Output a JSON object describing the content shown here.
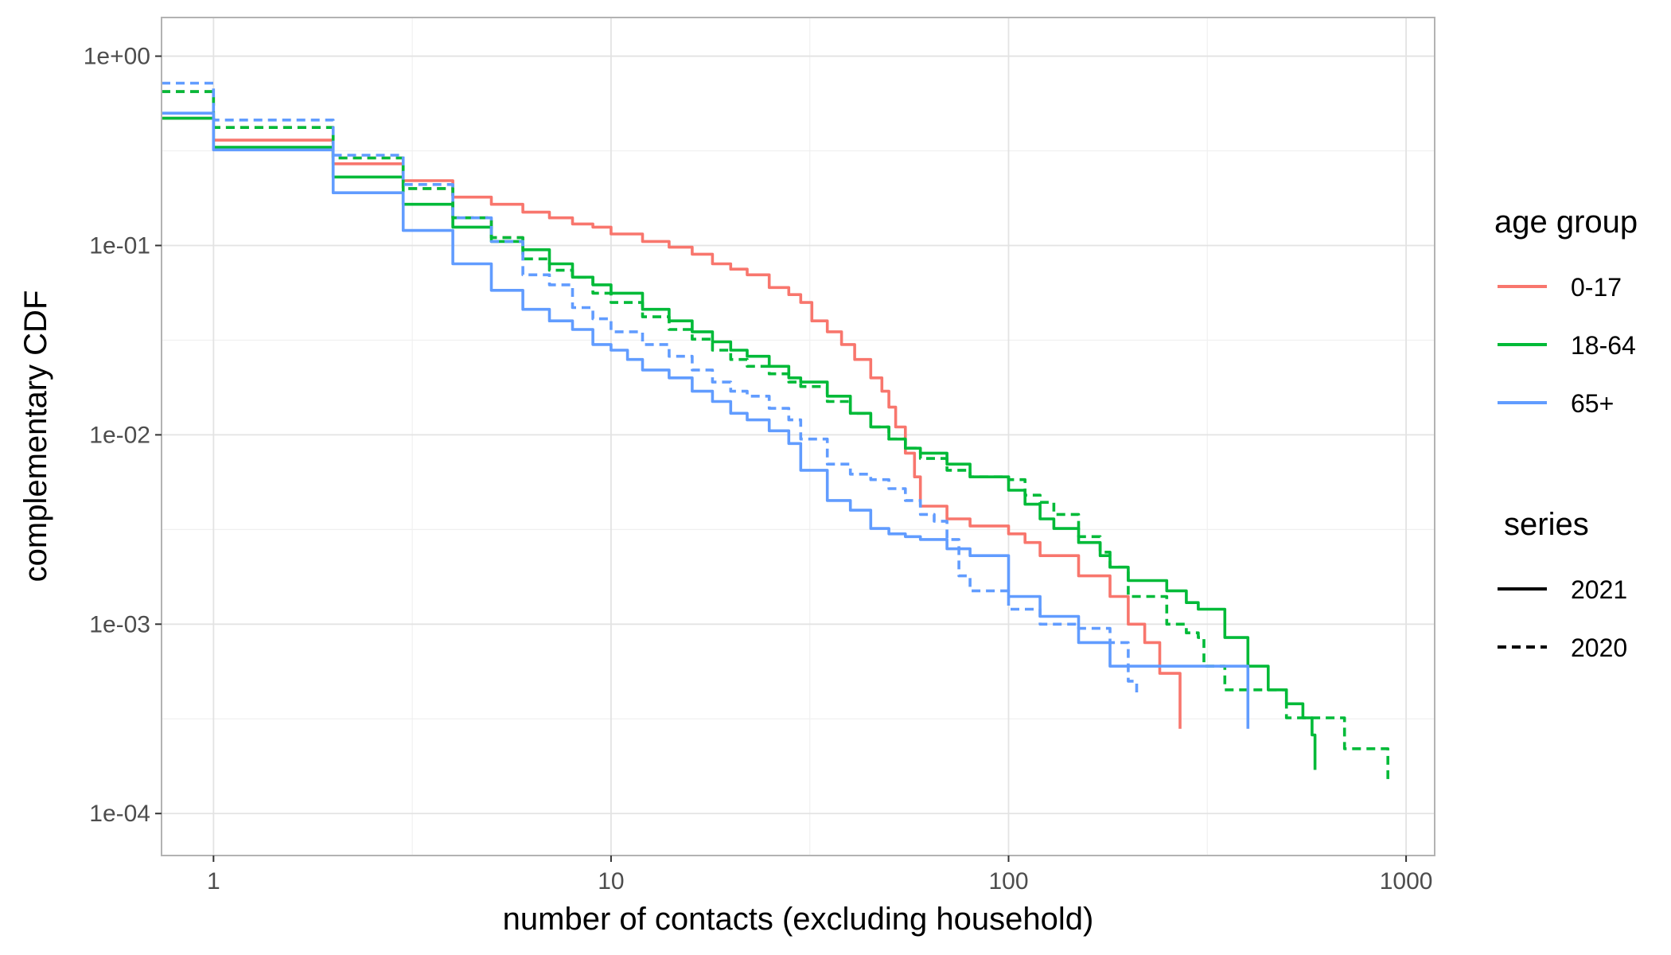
{
  "chart_data": {
    "type": "line",
    "xlabel": "number of contacts (excluding household)",
    "ylabel": "complementary CDF",
    "x_scale": "log10",
    "y_scale": "log10",
    "xlim": [
      0.74,
      1180
    ],
    "ylim": [
      6e-05,
      1.6
    ],
    "x_ticks": [
      {
        "value": 1,
        "label": "1"
      },
      {
        "value": 10,
        "label": "10"
      },
      {
        "value": 100,
        "label": "100"
      },
      {
        "value": 1000,
        "label": "1000"
      }
    ],
    "y_ticks": [
      {
        "value": 1,
        "label": "1e+00"
      },
      {
        "value": 0.1,
        "label": "1e-01"
      },
      {
        "value": 0.01,
        "label": "1e-02"
      },
      {
        "value": 0.001,
        "label": "1e-03"
      },
      {
        "value": 0.0001,
        "label": "1e-04"
      }
    ],
    "grid": true,
    "legend_position": "right",
    "legend_color": {
      "title": "age group",
      "items": [
        {
          "label": "0-17",
          "color": "#F8766D"
        },
        {
          "label": "18-64",
          "color": "#00BA38"
        },
        {
          "label": "65+",
          "color": "#619CFF"
        }
      ]
    },
    "legend_linetype": {
      "title": "series",
      "items": [
        {
          "label": "2021",
          "dash": "solid"
        },
        {
          "label": "2020",
          "dash": "dashed"
        }
      ]
    },
    "series": [
      {
        "name": "0-17",
        "color": "#F8766D",
        "dash": "solid",
        "step": true,
        "points": [
          [
            0.74,
            0.47
          ],
          [
            1,
            0.36
          ],
          [
            2,
            0.27
          ],
          [
            3,
            0.22
          ],
          [
            4,
            0.18
          ],
          [
            5,
            0.165
          ],
          [
            6,
            0.15
          ],
          [
            7,
            0.14
          ],
          [
            8,
            0.13
          ],
          [
            9,
            0.125
          ],
          [
            10,
            0.115
          ],
          [
            12,
            0.105
          ],
          [
            14,
            0.098
          ],
          [
            16,
            0.09
          ],
          [
            18,
            0.08
          ],
          [
            20,
            0.075
          ],
          [
            22,
            0.07
          ],
          [
            25,
            0.06
          ],
          [
            28,
            0.055
          ],
          [
            30,
            0.05
          ],
          [
            32,
            0.04
          ],
          [
            35,
            0.035
          ],
          [
            38,
            0.03
          ],
          [
            41,
            0.025
          ],
          [
            45,
            0.02
          ],
          [
            48,
            0.017
          ],
          [
            50,
            0.014
          ],
          [
            52,
            0.011
          ],
          [
            55,
            0.008
          ],
          [
            58,
            0.006
          ],
          [
            60,
            0.0042
          ],
          [
            70,
            0.0036
          ],
          [
            80,
            0.0033
          ],
          [
            100,
            0.003
          ],
          [
            110,
            0.0027
          ],
          [
            120,
            0.0023
          ],
          [
            150,
            0.0018
          ],
          [
            180,
            0.0014
          ],
          [
            200,
            0.001
          ],
          [
            220,
            0.0008
          ],
          [
            240,
            0.00055
          ],
          [
            270,
            0.00028
          ]
        ]
      },
      {
        "name": "0-17",
        "color": "#F8766D",
        "dash": "dashed",
        "step": true,
        "points": [
          [
            0.74,
            0.65
          ],
          [
            1,
            0.42
          ],
          [
            2,
            0.29
          ],
          [
            3,
            0.2
          ],
          [
            4,
            0.14
          ],
          [
            5,
            0.11
          ],
          [
            6,
            0.1
          ]
        ]
      },
      {
        "name": "18-64",
        "color": "#00BA38",
        "dash": "solid",
        "step": true,
        "points": [
          [
            0.74,
            0.47
          ],
          [
            1,
            0.33
          ],
          [
            2,
            0.23
          ],
          [
            3,
            0.165
          ],
          [
            4,
            0.125
          ],
          [
            5,
            0.105
          ],
          [
            6,
            0.095
          ],
          [
            7,
            0.08
          ],
          [
            8,
            0.068
          ],
          [
            9,
            0.062
          ],
          [
            10,
            0.056
          ],
          [
            12,
            0.046
          ],
          [
            14,
            0.04
          ],
          [
            16,
            0.035
          ],
          [
            18,
            0.031
          ],
          [
            20,
            0.028
          ],
          [
            22,
            0.026
          ],
          [
            25,
            0.023
          ],
          [
            28,
            0.02
          ],
          [
            30,
            0.019
          ],
          [
            35,
            0.016
          ],
          [
            40,
            0.013
          ],
          [
            45,
            0.011
          ],
          [
            50,
            0.0095
          ],
          [
            55,
            0.0085
          ],
          [
            60,
            0.008
          ],
          [
            70,
            0.007
          ],
          [
            80,
            0.006
          ],
          [
            100,
            0.0051
          ],
          [
            110,
            0.0043
          ],
          [
            120,
            0.0036
          ],
          [
            130,
            0.0032
          ],
          [
            150,
            0.0027
          ],
          [
            170,
            0.0023
          ],
          [
            180,
            0.002
          ],
          [
            200,
            0.0017
          ],
          [
            250,
            0.0015
          ],
          [
            280,
            0.0013
          ],
          [
            300,
            0.0012
          ],
          [
            350,
            0.00085
          ],
          [
            400,
            0.0006
          ],
          [
            450,
            0.00045
          ],
          [
            500,
            0.00038
          ],
          [
            550,
            0.00032
          ],
          [
            580,
            0.00026
          ],
          [
            590,
            0.00017
          ]
        ]
      },
      {
        "name": "18-64",
        "color": "#00BA38",
        "dash": "dashed",
        "step": true,
        "points": [
          [
            0.74,
            0.65
          ],
          [
            1,
            0.42
          ],
          [
            2,
            0.29
          ],
          [
            3,
            0.2
          ],
          [
            4,
            0.14
          ],
          [
            5,
            0.11
          ],
          [
            6,
            0.085
          ],
          [
            7,
            0.074
          ],
          [
            8,
            0.068
          ],
          [
            9,
            0.056
          ],
          [
            10,
            0.05
          ],
          [
            12,
            0.042
          ],
          [
            14,
            0.036
          ],
          [
            16,
            0.032
          ],
          [
            18,
            0.028
          ],
          [
            20,
            0.025
          ],
          [
            22,
            0.023
          ],
          [
            25,
            0.021
          ],
          [
            28,
            0.019
          ],
          [
            30,
            0.018
          ],
          [
            35,
            0.015
          ],
          [
            40,
            0.013
          ],
          [
            45,
            0.011
          ],
          [
            50,
            0.0095
          ],
          [
            55,
            0.0085
          ],
          [
            60,
            0.0075
          ],
          [
            70,
            0.0065
          ],
          [
            80,
            0.006
          ],
          [
            100,
            0.0058
          ],
          [
            110,
            0.0048
          ],
          [
            120,
            0.0044
          ],
          [
            130,
            0.0038
          ],
          [
            150,
            0.0029
          ],
          [
            170,
            0.0024
          ],
          [
            180,
            0.002
          ],
          [
            200,
            0.0014
          ],
          [
            250,
            0.001
          ],
          [
            280,
            0.0009
          ],
          [
            300,
            0.00085
          ],
          [
            310,
            0.0006
          ],
          [
            350,
            0.00045
          ],
          [
            500,
            0.00032
          ],
          [
            700,
            0.00022
          ],
          [
            900,
            0.00015
          ]
        ]
      },
      {
        "name": "65+",
        "color": "#619CFF",
        "dash": "solid",
        "step": true,
        "points": [
          [
            0.74,
            0.5
          ],
          [
            1,
            0.32
          ],
          [
            2,
            0.19
          ],
          [
            3,
            0.12
          ],
          [
            4,
            0.08
          ],
          [
            5,
            0.058
          ],
          [
            6,
            0.046
          ],
          [
            7,
            0.04
          ],
          [
            8,
            0.036
          ],
          [
            9,
            0.03
          ],
          [
            10,
            0.028
          ],
          [
            11,
            0.025
          ],
          [
            12,
            0.022
          ],
          [
            14,
            0.02
          ],
          [
            16,
            0.017
          ],
          [
            18,
            0.015
          ],
          [
            20,
            0.013
          ],
          [
            22,
            0.012
          ],
          [
            25,
            0.0105
          ],
          [
            28,
            0.009
          ],
          [
            30,
            0.0065
          ],
          [
            35,
            0.0045
          ],
          [
            40,
            0.004
          ],
          [
            45,
            0.0032
          ],
          [
            50,
            0.003
          ],
          [
            55,
            0.0029
          ],
          [
            60,
            0.0028
          ],
          [
            70,
            0.0025
          ],
          [
            80,
            0.0023
          ],
          [
            100,
            0.0014
          ],
          [
            120,
            0.0011
          ],
          [
            150,
            0.0008
          ],
          [
            180,
            0.0006
          ],
          [
            400,
            0.00028
          ]
        ]
      },
      {
        "name": "65+",
        "color": "#619CFF",
        "dash": "dashed",
        "step": true,
        "points": [
          [
            0.74,
            0.72
          ],
          [
            1,
            0.46
          ],
          [
            2,
            0.3
          ],
          [
            3,
            0.21
          ],
          [
            4,
            0.14
          ],
          [
            5,
            0.105
          ],
          [
            6,
            0.07
          ],
          [
            7,
            0.062
          ],
          [
            8,
            0.047
          ],
          [
            9,
            0.041
          ],
          [
            10,
            0.035
          ],
          [
            12,
            0.03
          ],
          [
            14,
            0.026
          ],
          [
            16,
            0.022
          ],
          [
            18,
            0.019
          ],
          [
            20,
            0.017
          ],
          [
            22,
            0.016
          ],
          [
            25,
            0.0138
          ],
          [
            28,
            0.012
          ],
          [
            30,
            0.0095
          ],
          [
            35,
            0.007
          ],
          [
            40,
            0.0062
          ],
          [
            45,
            0.0058
          ],
          [
            50,
            0.0052
          ],
          [
            55,
            0.0045
          ],
          [
            60,
            0.0038
          ],
          [
            65,
            0.0035
          ],
          [
            70,
            0.0028
          ],
          [
            75,
            0.0018
          ],
          [
            80,
            0.0015
          ],
          [
            100,
            0.0012
          ],
          [
            120,
            0.001
          ],
          [
            150,
            0.00095
          ],
          [
            180,
            0.0008
          ],
          [
            200,
            0.0005
          ],
          [
            210,
            0.00042
          ]
        ]
      }
    ]
  }
}
